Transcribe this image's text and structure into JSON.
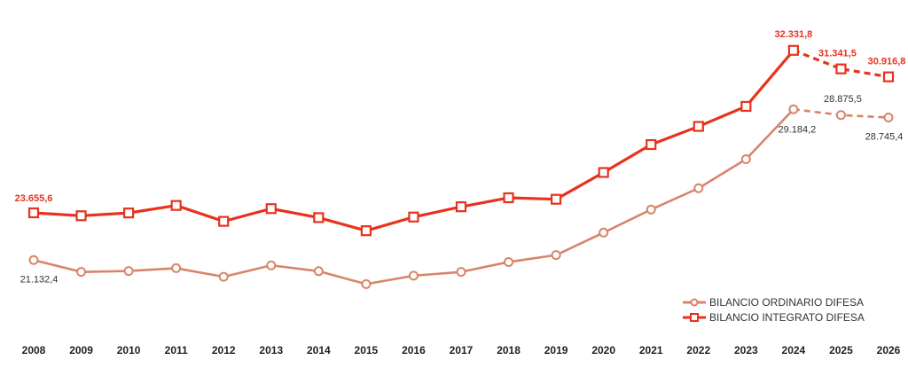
{
  "chart_data": {
    "type": "line",
    "title": "",
    "xlabel": "",
    "ylabel": "",
    "x": [
      "2008",
      "2009",
      "2010",
      "2011",
      "2012",
      "2013",
      "2014",
      "2015",
      "2016",
      "2017",
      "2018",
      "2019",
      "2020",
      "2021",
      "2022",
      "2023",
      "2024",
      "2025",
      "2026"
    ],
    "ylim": [
      17500,
      33600
    ],
    "grid": false,
    "legend_position": "bottom-right",
    "projected_from_index": 16,
    "series": [
      {
        "name": "BILANCIO INTEGRATO DIFESA",
        "color": "#e8321e",
        "marker": "square",
        "values": [
          23655.6,
          23500,
          23650,
          24050,
          23200,
          23880,
          23400,
          22700,
          23430,
          23980,
          24460,
          24380,
          25810,
          27300,
          28270,
          29340,
          32331.8,
          31341.5,
          30916.8
        ]
      },
      {
        "name": "BILANCIO ORDINARIO DIFESA",
        "color": "#d9846a",
        "marker": "circle",
        "values": [
          21132.4,
          20500,
          20550,
          20700,
          20240,
          20850,
          20540,
          19850,
          20300,
          20500,
          21030,
          21400,
          22600,
          23830,
          24970,
          26520,
          29184.2,
          28875.5,
          28745.4
        ]
      }
    ],
    "data_labels": [
      {
        "series": 0,
        "index": 0,
        "text": "23.655,6"
      },
      {
        "series": 0,
        "index": 16,
        "text": "32.331,8"
      },
      {
        "series": 0,
        "index": 17,
        "text": "31.341,5"
      },
      {
        "series": 0,
        "index": 18,
        "text": "30.916,8"
      },
      {
        "series": 1,
        "index": 0,
        "text": "21.132,4"
      },
      {
        "series": 1,
        "index": 16,
        "text": "29.184,2"
      },
      {
        "series": 1,
        "index": 17,
        "text": "28.875,5"
      },
      {
        "series": 1,
        "index": 18,
        "text": "28.745,4"
      }
    ]
  }
}
